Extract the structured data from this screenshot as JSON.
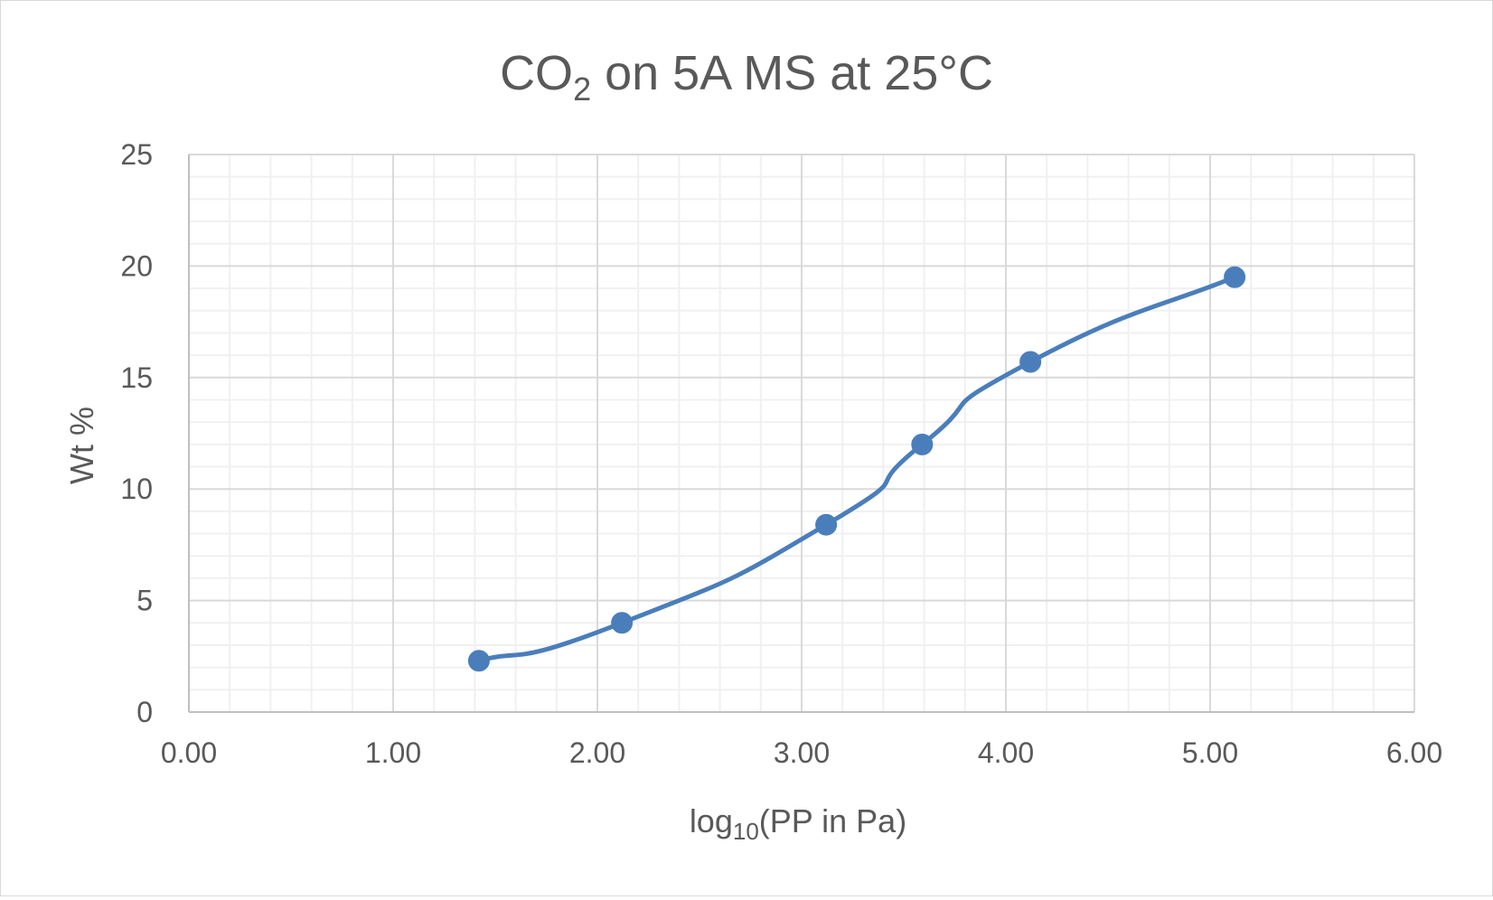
{
  "chart_data": {
    "type": "line",
    "title_main": "CO",
    "title_sub": "2",
    "title_rest": " on 5A MS at 25°C",
    "xlabel_main": "log",
    "xlabel_sub": "10",
    "xlabel_rest": "(PP in Pa)",
    "ylabel": "Wt %",
    "xlim": [
      0,
      6
    ],
    "ylim": [
      0,
      25
    ],
    "x_major_step": 1,
    "x_minor_step": 0.2,
    "y_major_step": 5,
    "y_minor_step": 1,
    "x_tick_labels": [
      "0.00",
      "1.00",
      "2.00",
      "3.00",
      "4.00",
      "5.00",
      "6.00"
    ],
    "y_tick_labels": [
      "0",
      "5",
      "10",
      "15",
      "20",
      "25"
    ],
    "series": [
      {
        "name": "CO2 on 5A MS at 25°C",
        "color": "#4a7ebb",
        "smooth": true,
        "x": [
          1.42,
          2.12,
          3.12,
          3.59,
          4.12,
          5.12
        ],
        "y": [
          2.3,
          4.0,
          8.4,
          12.0,
          15.7,
          19.5
        ]
      }
    ]
  }
}
